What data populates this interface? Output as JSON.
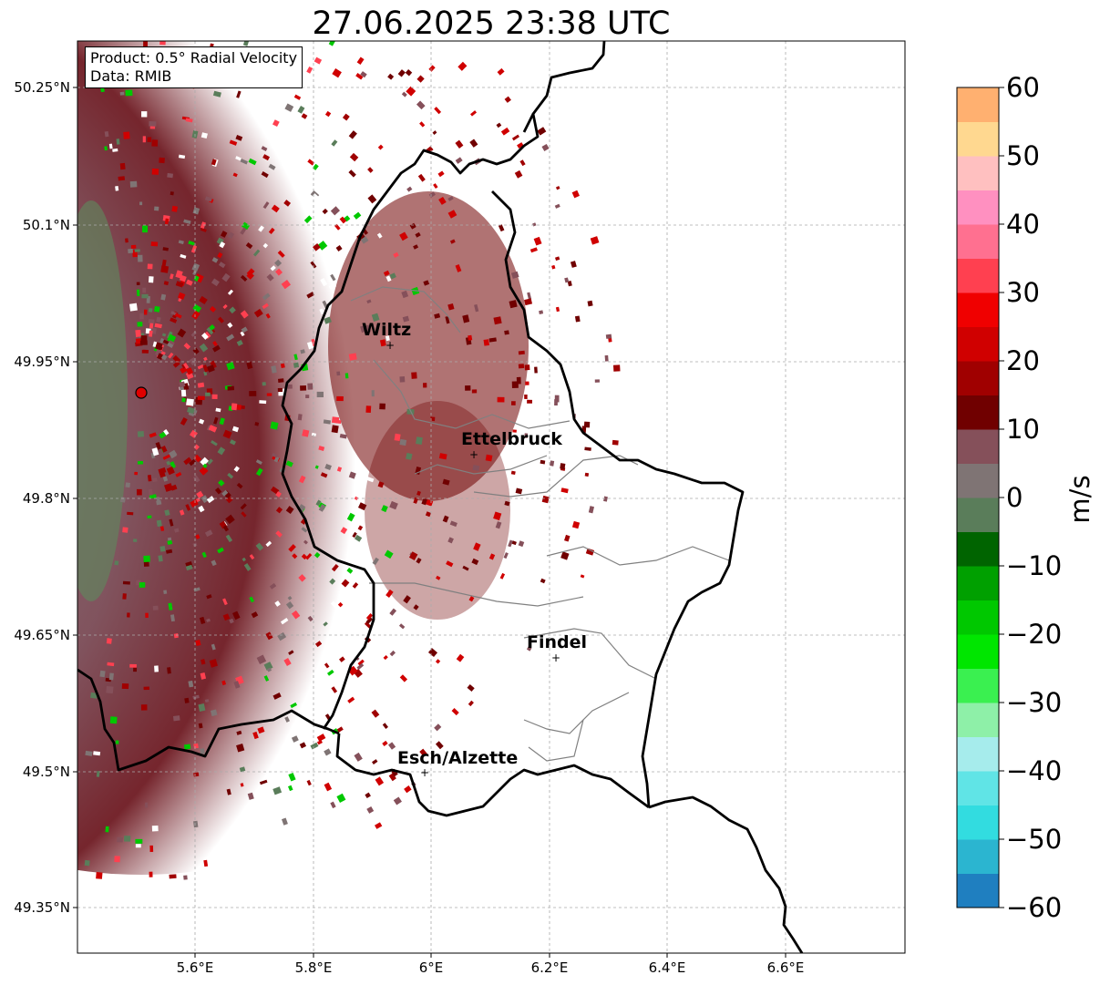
{
  "title": "27.06.2025 23:38 UTC",
  "info": {
    "product": "Product: 0.5° Radial Velocity",
    "data": "Data: RMIB"
  },
  "lat_labels": [
    "50.25°N",
    "50.1°N",
    "49.95°N",
    "49.8°N",
    "49.65°N",
    "49.5°N",
    "49.35°N"
  ],
  "lon_labels": [
    "5.6°E",
    "5.8°E",
    "6°E",
    "6.2°E",
    "6.4°E",
    "6.6°E"
  ],
  "cities": [
    "Wiltz",
    "Ettelbruck",
    "Findel",
    "Esch/Alzette"
  ],
  "colorbar": {
    "label": "m/s",
    "ticks": [
      "60",
      "50",
      "40",
      "30",
      "20",
      "10",
      "0",
      "−10",
      "−20",
      "−30",
      "−40",
      "−50",
      "−60"
    ],
    "range": [
      -60,
      60
    ],
    "colors": {
      "c_m60": "#1f7fc0",
      "c_m55": "#2bb5d0",
      "c_m50": "#32dce0",
      "c_m45": "#60e4e6",
      "c_m40": "#a6ecec",
      "c_m35": "#8ef0a8",
      "c_m30": "#3af050",
      "c_m25": "#00e600",
      "c_m20": "#00c800",
      "c_m15": "#00a000",
      "c_m10": "#006400",
      "c_m5": "#5a7d5a",
      "c_0": "#7f7474",
      "c_5": "#85505a",
      "c_10": "#700000",
      "c_15": "#a00000",
      "c_20": "#d00000",
      "c_25": "#f00000",
      "c_30": "#ff4050",
      "c_35": "#ff7090",
      "c_40": "#ff90c0",
      "c_45": "#ffc0c0",
      "c_50": "#ffd890",
      "c_55": "#ffb070",
      "c_60": "#ff9050"
    }
  },
  "radar_site_color": "#e00000"
}
